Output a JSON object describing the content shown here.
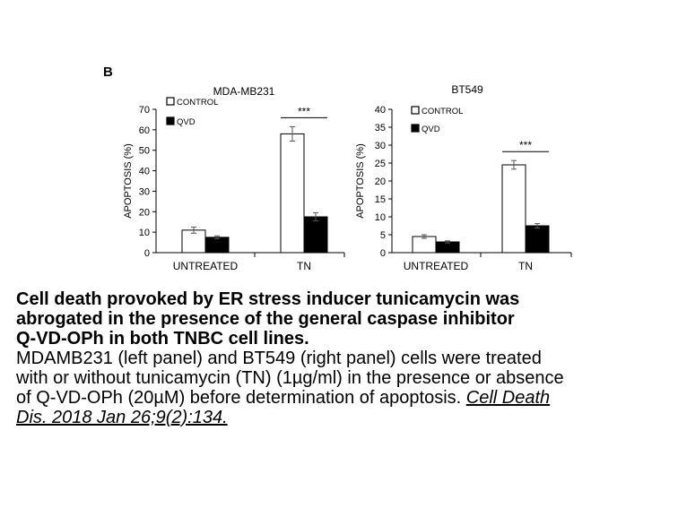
{
  "panel_label": "B",
  "chart_data": [
    {
      "type": "bar",
      "title": "MDA-MB231",
      "ylabel": "APOPTOSIS (%)",
      "ylim": [
        0,
        70
      ],
      "yticks": [
        0,
        10,
        20,
        30,
        40,
        50,
        60,
        70
      ],
      "categories": [
        "UNTREATED",
        "TN"
      ],
      "series": [
        {
          "name": "CONTROL",
          "values": [
            11,
            58
          ],
          "errors": [
            1.5,
            3.5
          ],
          "color": "#ffffff"
        },
        {
          "name": "QVD",
          "values": [
            7.5,
            17.5
          ],
          "errors": [
            0.7,
            2.0
          ],
          "color": "#000000"
        }
      ],
      "significance": {
        "label": "***",
        "category": "TN"
      },
      "legend": "top-left"
    },
    {
      "type": "bar",
      "title": "BT549",
      "ylabel": "APOPTOSIS (%)",
      "ylim": [
        0,
        40
      ],
      "yticks": [
        0,
        5,
        10,
        15,
        20,
        25,
        30,
        35,
        40
      ],
      "categories": [
        "UNTREATED",
        "TN"
      ],
      "series": [
        {
          "name": "CONTROL",
          "values": [
            4.5,
            24.5
          ],
          "errors": [
            0.5,
            1.2
          ],
          "color": "#ffffff"
        },
        {
          "name": "QVD",
          "values": [
            3,
            7.5
          ],
          "errors": [
            0.3,
            0.6
          ],
          "color": "#000000"
        }
      ],
      "significance": {
        "label": "***",
        "category": "TN"
      },
      "legend": "top-left"
    }
  ],
  "caption": {
    "title_lines": [
      "Cell death provoked by ER stress inducer tunicamycin was",
      "abrogated in the presence of the general caspase inhibitor",
      "Q-VD-OPh in both TNBC cell lines."
    ],
    "body_lines": [
      "MDAMB231 (left panel) and BT549 (right panel) cells were treated",
      "with or without tunicamycin (TN) (1µg/ml) in the presence or absence",
      "of Q-VD-OPh (20µM) before determination of apoptosis. "
    ],
    "citation_line1": "Cell Death ",
    "citation_line2": "Dis. 2018 Jan 26;9(2):134."
  }
}
